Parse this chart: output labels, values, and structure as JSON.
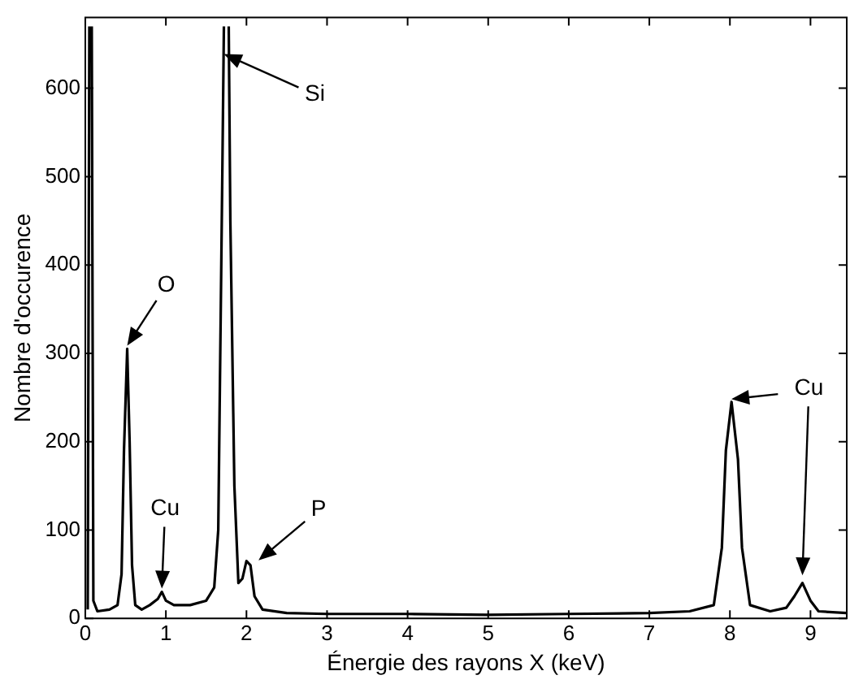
{
  "chart_data": {
    "type": "line",
    "xlabel": "Énergie des rayons X (keV)",
    "ylabel": "Nombre d'occurence",
    "xlim": [
      0,
      9.45
    ],
    "xticks": [
      0,
      1,
      2,
      3,
      4,
      5,
      6,
      7,
      8,
      9
    ],
    "ylim": [
      0,
      680
    ],
    "yticks": [
      0,
      100,
      200,
      300,
      400,
      500,
      600
    ],
    "grid": false,
    "legend": false,
    "marker": "none",
    "line_style": "solid",
    "series": [
      {
        "color": "#000000",
        "x": [
          0.03,
          0.05,
          0.065,
          0.08,
          0.1,
          0.15,
          0.3,
          0.4,
          0.45,
          0.48,
          0.52,
          0.55,
          0.58,
          0.62,
          0.7,
          0.8,
          0.9,
          0.95,
          1.0,
          1.1,
          1.3,
          1.5,
          1.6,
          1.65,
          1.7,
          1.72,
          1.75,
          1.78,
          1.8,
          1.85,
          1.9,
          1.95,
          2.0,
          2.05,
          2.1,
          2.2,
          2.5,
          3,
          4,
          5,
          6,
          7,
          7.5,
          7.8,
          7.9,
          7.95,
          8.02,
          8.1,
          8.15,
          8.25,
          8.5,
          8.7,
          8.8,
          8.9,
          9.0,
          9.1,
          9.45
        ],
        "values": [
          10,
          670,
          null,
          670,
          20,
          8,
          10,
          15,
          50,
          190,
          305,
          200,
          60,
          15,
          10,
          15,
          22,
          30,
          20,
          15,
          15,
          20,
          35,
          100,
          500,
          670,
          null,
          670,
          450,
          150,
          40,
          45,
          65,
          60,
          25,
          10,
          6,
          5,
          5,
          4,
          5,
          6,
          8,
          15,
          80,
          190,
          245,
          180,
          80,
          15,
          8,
          12,
          25,
          40,
          20,
          8,
          6
        ]
      }
    ],
    "annotations": [
      {
        "text": "O",
        "x": 0.52,
        "y": 305
      },
      {
        "text": "Cu",
        "x": 0.95,
        "y": 30
      },
      {
        "text": "Si",
        "x": 1.72,
        "y": 635
      },
      {
        "text": "P",
        "x": 2.15,
        "y": 62
      },
      {
        "text": "Cu",
        "x": 8.9,
        "y": 45
      }
    ]
  }
}
